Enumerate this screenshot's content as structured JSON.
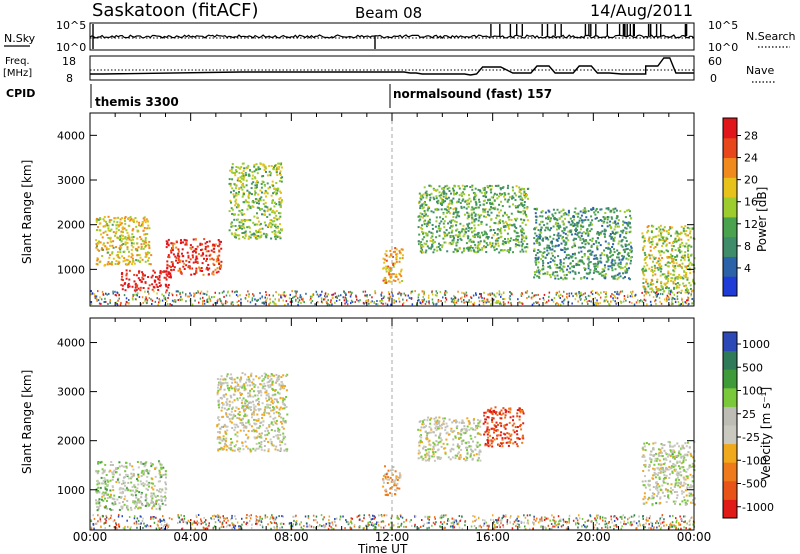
{
  "header": {
    "station": "Saskatoon (fitACF)",
    "beam": "Beam 08",
    "date": "14/Aug/2011"
  },
  "status_panels": {
    "nsky_label": "N.Sky",
    "nsky_ticks": [
      "10^5",
      "10^0"
    ],
    "nsearch_label": "N.Search",
    "nsearch_ticks": [
      "10^5",
      "10^0"
    ],
    "freq_label": "Freq.",
    "freq_unit": "[MHz]",
    "freq_ticks": [
      "18",
      "8"
    ],
    "nave_label": "Nave",
    "nave_ticks": [
      "60",
      "0"
    ],
    "cpid_label": "CPID",
    "cpid_modes": [
      "themis 3300",
      "normalsound (fast) 157"
    ]
  },
  "colors": {
    "power_scale": [
      "#1f3dd6",
      "#2c63a8",
      "#3f8c6a",
      "#4aa14e",
      "#9dcc2e",
      "#e6c21a",
      "#f08a1c",
      "#e8471c",
      "#e0161b"
    ],
    "velocity_scale": [
      "#2b48b6",
      "#2f7a58",
      "#3f9b3a",
      "#79c93a",
      "#bdbdb5",
      "#c9c9c0",
      "#f0a81c",
      "#ee7a1c",
      "#e85418",
      "#e01a17"
    ]
  },
  "chart_data": [
    {
      "type": "heatmap",
      "title": "",
      "xlabel": "Time UT",
      "ylabel": "Slant Range [km]",
      "x_ticks": [
        "00:00",
        "04:00",
        "08:00",
        "12:00",
        "16:00",
        "20:00",
        "00:00"
      ],
      "y_ticks": [
        "1000",
        "2000",
        "3000",
        "4000"
      ],
      "xlim": [
        0,
        24
      ],
      "ylim": [
        180,
        4500
      ],
      "colorbar": {
        "label": "Power [dB]",
        "ticks": [
          "4",
          "8",
          "12",
          "16",
          "20",
          "24",
          "28"
        ],
        "range": [
          0,
          30
        ]
      },
      "description_regions": [
        {
          "x": [
            0.2,
            2.4
          ],
          "y": [
            1100,
            2200
          ],
          "value": 18
        },
        {
          "x": [
            1.2,
            3.2
          ],
          "y": [
            550,
            1000
          ],
          "value": 29
        },
        {
          "x": [
            3.0,
            5.2
          ],
          "y": [
            900,
            1700
          ],
          "value": 27
        },
        {
          "x": [
            5.5,
            7.6
          ],
          "y": [
            1700,
            3400
          ],
          "value": 14
        },
        {
          "x": [
            11.6,
            12.4
          ],
          "y": [
            700,
            1500
          ],
          "value": 20
        },
        {
          "x": [
            13.0,
            17.4
          ],
          "y": [
            1400,
            2900
          ],
          "value": 12
        },
        {
          "x": [
            17.6,
            21.5
          ],
          "y": [
            800,
            2400
          ],
          "value": 10
        },
        {
          "x": [
            21.9,
            24.0
          ],
          "y": [
            500,
            2000
          ],
          "value": 16
        }
      ]
    },
    {
      "type": "heatmap",
      "title": "",
      "xlabel": "Time UT",
      "ylabel": "Slant Range [km]",
      "x_ticks": [
        "00:00",
        "04:00",
        "08:00",
        "12:00",
        "16:00",
        "20:00",
        "00:00"
      ],
      "y_ticks": [
        "1000",
        "2000",
        "3000",
        "4000"
      ],
      "xlim": [
        0,
        24
      ],
      "ylim": [
        180,
        4500
      ],
      "colorbar": {
        "label": "Velocity [m s⁻¹]",
        "ticks": [
          "1000",
          "500",
          "100",
          "25",
          "-25",
          "-100",
          "-500",
          "-1000"
        ],
        "range": [
          -1000,
          1000
        ]
      },
      "description_regions": [
        {
          "x": [
            0.2,
            3.0
          ],
          "y": [
            600,
            1600
          ],
          "value": 120
        },
        {
          "x": [
            5.0,
            7.8
          ],
          "y": [
            1800,
            3400
          ],
          "value": 0
        },
        {
          "x": [
            11.6,
            12.3
          ],
          "y": [
            900,
            1500
          ],
          "value": -300
        },
        {
          "x": [
            15.6,
            17.2
          ],
          "y": [
            1900,
            2700
          ],
          "value": -800
        },
        {
          "x": [
            13.0,
            15.5
          ],
          "y": [
            1600,
            2500
          ],
          "value": 0
        },
        {
          "x": [
            21.9,
            24.0
          ],
          "y": [
            700,
            2000
          ],
          "value": 60
        }
      ]
    }
  ]
}
